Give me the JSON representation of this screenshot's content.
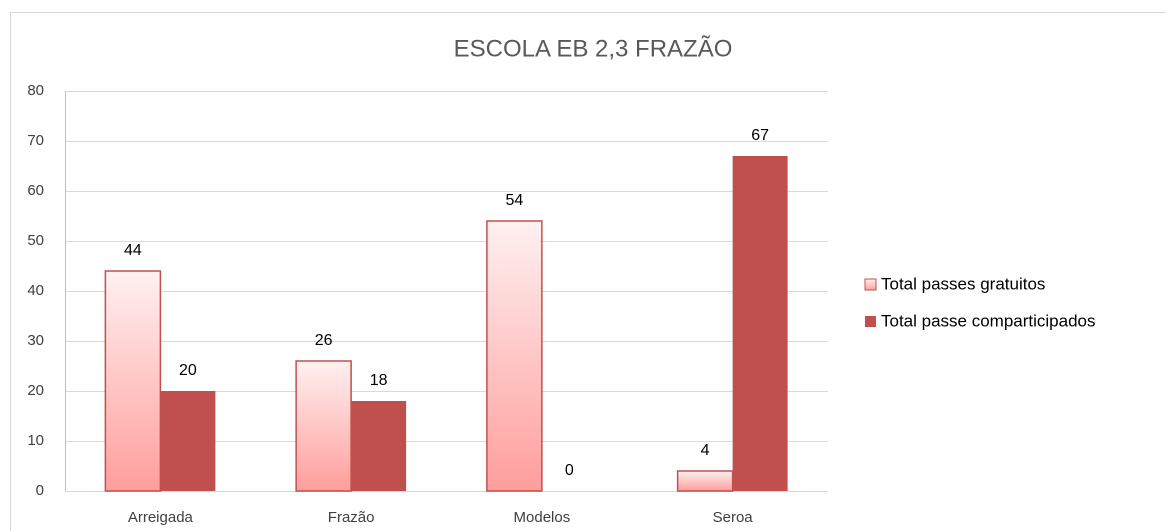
{
  "chart_data": {
    "type": "bar",
    "title": "ESCOLA EB 2,3 FRAZÃO",
    "categories": [
      "Arreigada",
      "Frazão",
      "Modelos",
      "Seroa"
    ],
    "series": [
      {
        "name": "Total passes gratuitos",
        "color": "#ff9e9c",
        "values": [
          44,
          26,
          54,
          4
        ]
      },
      {
        "name": "Total passe comparticipados",
        "color": "#c0504d",
        "values": [
          20,
          18,
          0,
          67
        ]
      }
    ],
    "ylim": [
      0,
      80
    ],
    "yticks": [
      0,
      10,
      20,
      30,
      40,
      50,
      60,
      70,
      80
    ],
    "grid": true,
    "legend": "right"
  }
}
